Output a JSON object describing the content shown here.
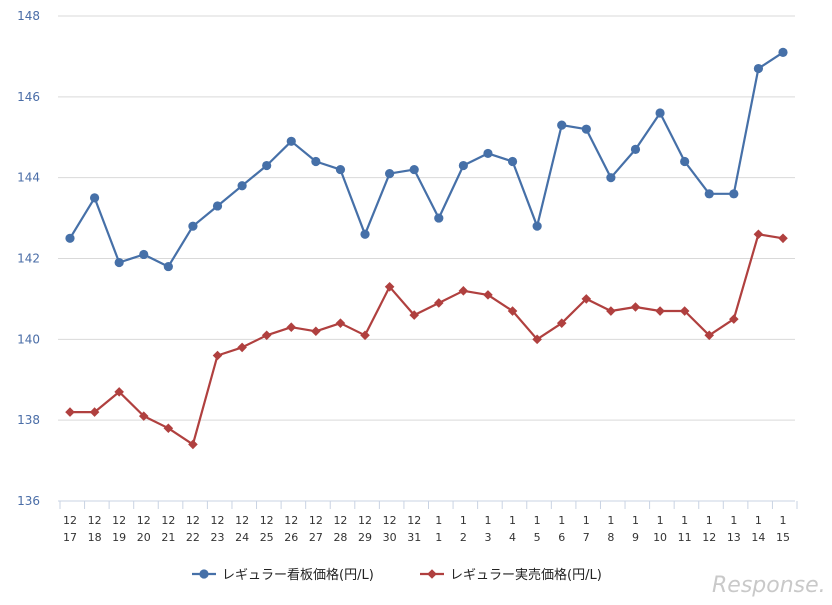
{
  "chart_data": {
    "type": "line",
    "categories": [
      [
        "12",
        "17"
      ],
      [
        "12",
        "18"
      ],
      [
        "12",
        "19"
      ],
      [
        "12",
        "20"
      ],
      [
        "12",
        "21"
      ],
      [
        "12",
        "22"
      ],
      [
        "12",
        "23"
      ],
      [
        "12",
        "24"
      ],
      [
        "12",
        "25"
      ],
      [
        "12",
        "26"
      ],
      [
        "12",
        "27"
      ],
      [
        "12",
        "28"
      ],
      [
        "12",
        "29"
      ],
      [
        "12",
        "30"
      ],
      [
        "12",
        "31"
      ],
      [
        "1",
        "1"
      ],
      [
        "1",
        "2"
      ],
      [
        "1",
        "3"
      ],
      [
        "1",
        "4"
      ],
      [
        "1",
        "5"
      ],
      [
        "1",
        "6"
      ],
      [
        "1",
        "7"
      ],
      [
        "1",
        "8"
      ],
      [
        "1",
        "9"
      ],
      [
        "1",
        "10"
      ],
      [
        "1",
        "11"
      ],
      [
        "1",
        "12"
      ],
      [
        "1",
        "13"
      ],
      [
        "1",
        "14"
      ],
      [
        "1",
        "15"
      ]
    ],
    "ylim": [
      136,
      148
    ],
    "yticks": [
      136,
      138,
      140,
      142,
      144,
      146,
      148
    ],
    "grid": true,
    "legend_position": "bottom",
    "series": [
      {
        "name": "レギュラー看板価格(円/L)",
        "color": "#4670a8",
        "marker": "circle",
        "values": [
          142.5,
          143.5,
          141.9,
          142.1,
          141.8,
          142.8,
          143.3,
          143.8,
          144.3,
          144.9,
          144.4,
          144.2,
          142.6,
          144.1,
          144.2,
          143.0,
          144.3,
          144.6,
          144.4,
          142.8,
          145.3,
          145.2,
          144.0,
          144.7,
          145.6,
          144.4,
          143.6,
          143.6,
          146.7,
          147.1
        ]
      },
      {
        "name": "レギュラー実売価格(円/L)",
        "color": "#b0403f",
        "marker": "diamond",
        "values": [
          138.2,
          138.2,
          138.7,
          138.1,
          137.8,
          137.4,
          139.6,
          139.8,
          140.1,
          140.3,
          140.2,
          140.4,
          140.1,
          141.3,
          140.6,
          140.9,
          141.2,
          141.1,
          140.7,
          140.0,
          140.4,
          141.0,
          140.7,
          140.8,
          140.7,
          140.7,
          140.1,
          140.5,
          142.6,
          142.5
        ]
      }
    ]
  },
  "watermark": "Response."
}
